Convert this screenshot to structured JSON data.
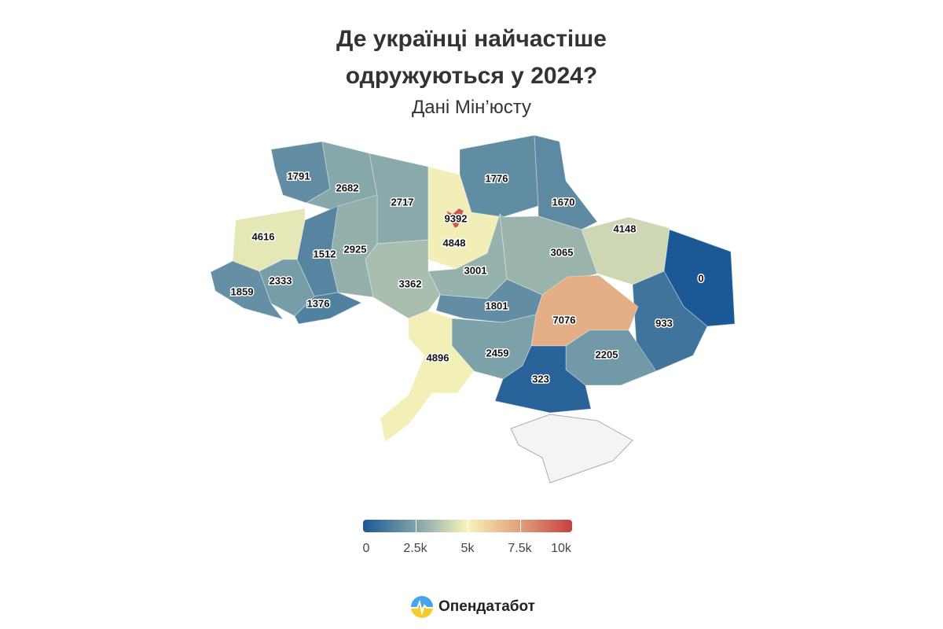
{
  "title_line1": "Де українці найчастіше",
  "title_line2": "одружуються у 2024?",
  "subtitle": "Дані Мін’юсту",
  "chart_data": {
    "type": "choropleth",
    "color_scale": {
      "min": 0,
      "max": 10000,
      "stops": [
        "#1b5896",
        "#7ea2a9",
        "#f8f3b8",
        "#e0a07c",
        "#c7403f"
      ]
    },
    "legend": {
      "ticks": [
        "0",
        "2.5k",
        "5k",
        "7.5k",
        "10k"
      ],
      "placement": "bottom-center"
    },
    "regions": [
      {
        "id": "volyn",
        "value": 1791
      },
      {
        "id": "rivne",
        "value": 2682
      },
      {
        "id": "zhytomyr",
        "value": 2717
      },
      {
        "id": "kyiv-oblast",
        "value": 4848
      },
      {
        "id": "chernihiv",
        "value": 1776
      },
      {
        "id": "sumy",
        "value": 1670
      },
      {
        "id": "kharkiv",
        "value": 4148
      },
      {
        "id": "luhansk",
        "value": 0
      },
      {
        "id": "donetsk",
        "value": 933
      },
      {
        "id": "poltava",
        "value": 3065
      },
      {
        "id": "cherkasy",
        "value": 3001
      },
      {
        "id": "vinnytsia",
        "value": 3362
      },
      {
        "id": "khmelnytskyi",
        "value": 2925
      },
      {
        "id": "ternopil",
        "value": 1512
      },
      {
        "id": "lviv",
        "value": 4616
      },
      {
        "id": "ivano-frankivsk",
        "value": 2333
      },
      {
        "id": "zakarpattia",
        "value": 1859
      },
      {
        "id": "chernivtsi",
        "value": 1376
      },
      {
        "id": "kirovohrad",
        "value": 1801
      },
      {
        "id": "dnipropetrovsk",
        "value": 7076
      },
      {
        "id": "zaporizhzhia",
        "value": 2205
      },
      {
        "id": "mykolaiv",
        "value": 2459
      },
      {
        "id": "kherson",
        "value": 323
      },
      {
        "id": "odesa",
        "value": 4896
      },
      {
        "id": "kyiv-city",
        "value": 9392
      },
      {
        "id": "crimea",
        "value": null
      }
    ]
  },
  "brand": {
    "name": "Опендатабот",
    "icon": "opendatabot-logo"
  }
}
